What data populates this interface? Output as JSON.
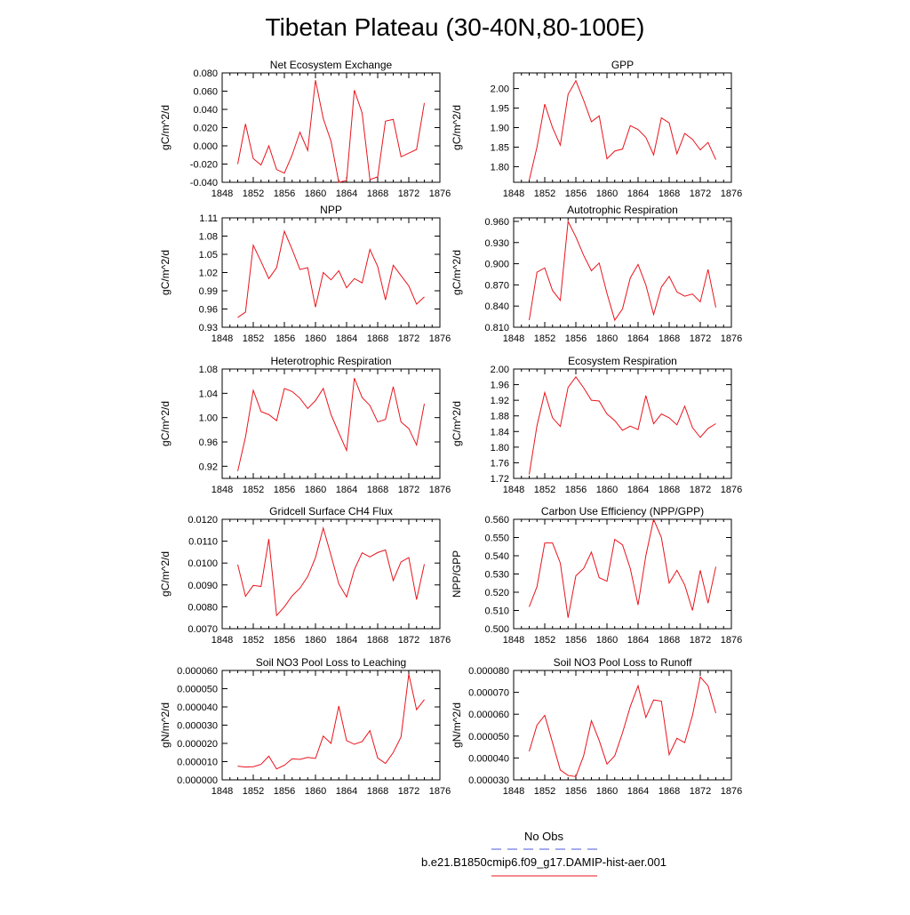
{
  "figure": {
    "title": "Tibetan Plateau (30-40N,80-100E)",
    "line_color": "#e8141c",
    "obs_color": "#4a5ad8"
  },
  "legend": {
    "entries": [
      {
        "label": "No Obs",
        "style": "dashed",
        "color": "#4a5ad8"
      },
      {
        "label": "b.e21.B1850cmip6.f09_g17.DAMIP-hist-aer.001",
        "style": "solid",
        "color": "#e8141c"
      }
    ]
  },
  "chart_data": [
    {
      "type": "line",
      "title": "Net Ecosystem Exchange",
      "ylabel": "gC/m^2/d",
      "xlim": [
        1848,
        1876
      ],
      "xticks": [
        1848,
        1852,
        1856,
        1860,
        1864,
        1868,
        1872,
        1876
      ],
      "ylim": [
        -0.04,
        0.08
      ],
      "yticks": [
        "-0.040",
        "-0.020",
        "0.000",
        "0.020",
        "0.040",
        "0.060",
        "0.080"
      ],
      "x": [
        1850,
        1851,
        1852,
        1853,
        1854,
        1855,
        1856,
        1857,
        1858,
        1859,
        1860,
        1861,
        1862,
        1863,
        1864,
        1865,
        1866,
        1867,
        1868,
        1869,
        1870,
        1871,
        1872,
        1873,
        1874
      ],
      "values": [
        -0.02,
        0.024,
        -0.014,
        -0.021,
        0.0,
        -0.026,
        -0.03,
        -0.01,
        0.015,
        -0.005,
        0.072,
        0.03,
        0.005,
        -0.04,
        -0.038,
        0.061,
        0.036,
        -0.037,
        -0.034,
        0.027,
        0.029,
        -0.012,
        -0.008,
        -0.004,
        0.047
      ]
    },
    {
      "type": "line",
      "title": "GPP",
      "ylabel": "gC/m^2/d",
      "xlim": [
        1848,
        1876
      ],
      "xticks": [
        1848,
        1852,
        1856,
        1860,
        1864,
        1868,
        1872,
        1876
      ],
      "ylim": [
        1.76,
        2.04
      ],
      "yticks": [
        "1.80",
        "1.85",
        "1.90",
        "1.95",
        "2.00"
      ],
      "x": [
        1850,
        1851,
        1852,
        1853,
        1854,
        1855,
        1856,
        1857,
        1858,
        1859,
        1860,
        1861,
        1862,
        1863,
        1864,
        1865,
        1866,
        1867,
        1868,
        1869,
        1870,
        1871,
        1872,
        1873,
        1874
      ],
      "values": [
        1.765,
        1.85,
        1.96,
        1.9,
        1.855,
        1.985,
        2.02,
        1.97,
        1.915,
        1.93,
        1.82,
        1.84,
        1.845,
        1.905,
        1.895,
        1.875,
        1.83,
        1.925,
        1.912,
        1.833,
        1.885,
        1.87,
        1.843,
        1.862,
        1.818
      ]
    },
    {
      "type": "line",
      "title": "NPP",
      "ylabel": "gC/m^2/d",
      "xlim": [
        1848,
        1876
      ],
      "xticks": [
        1848,
        1852,
        1856,
        1860,
        1864,
        1868,
        1872,
        1876
      ],
      "ylim": [
        0.93,
        1.11
      ],
      "yticks": [
        "0.93",
        "0.96",
        "0.99",
        "1.02",
        "1.05",
        "1.08",
        "1.11"
      ],
      "x": [
        1850,
        1851,
        1852,
        1853,
        1854,
        1855,
        1856,
        1857,
        1858,
        1859,
        1860,
        1861,
        1862,
        1863,
        1864,
        1865,
        1866,
        1867,
        1868,
        1869,
        1870,
        1871,
        1872,
        1873,
        1874
      ],
      "values": [
        0.946,
        0.955,
        1.065,
        1.038,
        1.01,
        1.028,
        1.088,
        1.058,
        1.025,
        1.028,
        0.963,
        1.02,
        1.008,
        1.023,
        0.995,
        1.01,
        1.003,
        1.058,
        1.03,
        0.975,
        1.032,
        1.015,
        0.998,
        0.968,
        0.98
      ]
    },
    {
      "type": "line",
      "title": "Autotrophic Respiration",
      "ylabel": "gC/m^2/d",
      "xlim": [
        1848,
        1876
      ],
      "xticks": [
        1848,
        1852,
        1856,
        1860,
        1864,
        1868,
        1872,
        1876
      ],
      "ylim": [
        0.81,
        0.965
      ],
      "yticks": [
        "0.810",
        "0.840",
        "0.870",
        "0.900",
        "0.930",
        "0.960"
      ],
      "x": [
        1850,
        1851,
        1852,
        1853,
        1854,
        1855,
        1856,
        1857,
        1858,
        1859,
        1860,
        1861,
        1862,
        1863,
        1864,
        1865,
        1866,
        1867,
        1868,
        1869,
        1870,
        1871,
        1872,
        1873,
        1874
      ],
      "values": [
        0.82,
        0.888,
        0.894,
        0.862,
        0.848,
        0.96,
        0.938,
        0.912,
        0.89,
        0.901,
        0.858,
        0.82,
        0.836,
        0.88,
        0.899,
        0.87,
        0.828,
        0.867,
        0.882,
        0.86,
        0.854,
        0.857,
        0.846,
        0.892,
        0.838
      ]
    },
    {
      "type": "line",
      "title": "Heterotrophic Respiration",
      "ylabel": "gC/m^2/d",
      "xlim": [
        1848,
        1876
      ],
      "xticks": [
        1848,
        1852,
        1856,
        1860,
        1864,
        1868,
        1872,
        1876
      ],
      "ylim": [
        0.9,
        1.08
      ],
      "yticks": [
        "0.92",
        "0.96",
        "1.00",
        "1.04",
        "1.08"
      ],
      "x": [
        1850,
        1851,
        1852,
        1853,
        1854,
        1855,
        1856,
        1857,
        1858,
        1859,
        1860,
        1861,
        1862,
        1863,
        1864,
        1865,
        1866,
        1867,
        1868,
        1869,
        1870,
        1871,
        1872,
        1873,
        1874
      ],
      "values": [
        0.912,
        0.968,
        1.045,
        1.01,
        1.005,
        0.995,
        1.048,
        1.043,
        1.032,
        1.015,
        1.028,
        1.048,
        1.005,
        0.975,
        0.946,
        1.065,
        1.033,
        1.02,
        0.993,
        0.997,
        1.051,
        0.993,
        0.982,
        0.955,
        1.023
      ]
    },
    {
      "type": "line",
      "title": "Ecosystem Respiration",
      "ylabel": "gC/m^2/d",
      "xlim": [
        1848,
        1876
      ],
      "xticks": [
        1848,
        1852,
        1856,
        1860,
        1864,
        1868,
        1872,
        1876
      ],
      "ylim": [
        1.72,
        2.0
      ],
      "yticks": [
        "1.72",
        "1.76",
        "1.80",
        "1.84",
        "1.88",
        "1.92",
        "1.96",
        "2.00"
      ],
      "x": [
        1850,
        1851,
        1852,
        1853,
        1854,
        1855,
        1856,
        1857,
        1858,
        1859,
        1860,
        1861,
        1862,
        1863,
        1864,
        1865,
        1866,
        1867,
        1868,
        1869,
        1870,
        1871,
        1872,
        1873,
        1874
      ],
      "values": [
        1.73,
        1.855,
        1.94,
        1.875,
        1.853,
        1.953,
        1.98,
        1.952,
        1.92,
        1.918,
        1.885,
        1.868,
        1.843,
        1.854,
        1.845,
        1.932,
        1.86,
        1.885,
        1.875,
        1.857,
        1.905,
        1.85,
        1.825,
        1.848,
        1.86
      ]
    },
    {
      "type": "line",
      "title": "Gridcell Surface CH4 Flux",
      "ylabel": "gC/m^2/d",
      "xlim": [
        1848,
        1876
      ],
      "xticks": [
        1848,
        1852,
        1856,
        1860,
        1864,
        1868,
        1872,
        1876
      ],
      "ylim": [
        0.007,
        0.012
      ],
      "yticks": [
        "0.0070",
        "0.0080",
        "0.0090",
        "0.0100",
        "0.0110",
        "0.0120"
      ],
      "x": [
        1850,
        1851,
        1852,
        1853,
        1854,
        1855,
        1856,
        1857,
        1858,
        1859,
        1860,
        1861,
        1862,
        1863,
        1864,
        1865,
        1866,
        1867,
        1868,
        1869,
        1870,
        1871,
        1872,
        1873,
        1874
      ],
      "values": [
        0.00993,
        0.00848,
        0.00898,
        0.00893,
        0.0111,
        0.0076,
        0.008,
        0.0085,
        0.00885,
        0.00938,
        0.01025,
        0.0116,
        0.01035,
        0.00905,
        0.00845,
        0.0097,
        0.01047,
        0.01028,
        0.01048,
        0.0106,
        0.0092,
        0.01005,
        0.01025,
        0.00833,
        0.00995
      ]
    },
    {
      "type": "line",
      "title": "Carbon Use Efficiency (NPP/GPP)",
      "ylabel": "NPP/GPP",
      "xlim": [
        1848,
        1876
      ],
      "xticks": [
        1848,
        1852,
        1856,
        1860,
        1864,
        1868,
        1872,
        1876
      ],
      "ylim": [
        0.5,
        0.56
      ],
      "yticks": [
        "0.500",
        "0.510",
        "0.520",
        "0.530",
        "0.540",
        "0.550",
        "0.560"
      ],
      "x": [
        1850,
        1851,
        1852,
        1853,
        1854,
        1855,
        1856,
        1857,
        1858,
        1859,
        1860,
        1861,
        1862,
        1863,
        1864,
        1865,
        1866,
        1867,
        1868,
        1869,
        1870,
        1871,
        1872,
        1873,
        1874
      ],
      "values": [
        0.512,
        0.523,
        0.547,
        0.547,
        0.536,
        0.506,
        0.529,
        0.533,
        0.542,
        0.528,
        0.526,
        0.549,
        0.546,
        0.533,
        0.513,
        0.54,
        0.56,
        0.55,
        0.525,
        0.532,
        0.524,
        0.51,
        0.532,
        0.514,
        0.534
      ]
    },
    {
      "type": "line",
      "title": "Soil NO3 Pool Loss to Leaching",
      "ylabel": "gN/m^2/d",
      "xlim": [
        1848,
        1876
      ],
      "xticks": [
        1848,
        1852,
        1856,
        1860,
        1864,
        1868,
        1872,
        1876
      ],
      "ylim": [
        0.0,
        6e-05
      ],
      "yticks": [
        "0.000000",
        "0.000010",
        "0.000020",
        "0.000030",
        "0.000040",
        "0.000050",
        "0.000060"
      ],
      "x": [
        1850,
        1851,
        1852,
        1853,
        1854,
        1855,
        1856,
        1857,
        1858,
        1859,
        1860,
        1861,
        1862,
        1863,
        1864,
        1865,
        1866,
        1867,
        1868,
        1869,
        1870,
        1871,
        1872,
        1873,
        1874
      ],
      "values": [
        7.5e-06,
        7e-06,
        7.2e-06,
        8.5e-06,
        1.3e-05,
        6e-06,
        8e-06,
        1.15e-05,
        1.12e-05,
        1.23e-05,
        1.17e-05,
        2.4e-05,
        2e-05,
        4.05e-05,
        2.15e-05,
        1.95e-05,
        2.1e-05,
        2.7e-05,
        1.2e-05,
        9e-06,
        1.5e-05,
        2.35e-05,
        5.8e-05,
        3.85e-05,
        4.4e-05
      ]
    },
    {
      "type": "line",
      "title": "Soil NO3 Pool Loss to Runoff",
      "ylabel": "gN/m^2/d",
      "xlim": [
        1848,
        1876
      ],
      "xticks": [
        1848,
        1852,
        1856,
        1860,
        1864,
        1868,
        1872,
        1876
      ],
      "ylim": [
        3e-05,
        8e-05
      ],
      "yticks": [
        "0.000030",
        "0.000040",
        "0.000050",
        "0.000060",
        "0.000070",
        "0.000080"
      ],
      "x": [
        1850,
        1851,
        1852,
        1853,
        1854,
        1855,
        1856,
        1857,
        1858,
        1859,
        1860,
        1861,
        1862,
        1863,
        1864,
        1865,
        1866,
        1867,
        1868,
        1869,
        1870,
        1871,
        1872,
        1873,
        1874
      ],
      "values": [
        4.3e-05,
        5.5e-05,
        5.95e-05,
        4.7e-05,
        3.45e-05,
        3.2e-05,
        3.15e-05,
        4.1e-05,
        5.7e-05,
        4.8e-05,
        3.72e-05,
        4.1e-05,
        5.15e-05,
        6.35e-05,
        7.3e-05,
        5.85e-05,
        6.65e-05,
        6.6e-05,
        4.15e-05,
        4.9e-05,
        4.7e-05,
        5.95e-05,
        7.7e-05,
        7.3e-05,
        6.05e-05
      ]
    }
  ]
}
